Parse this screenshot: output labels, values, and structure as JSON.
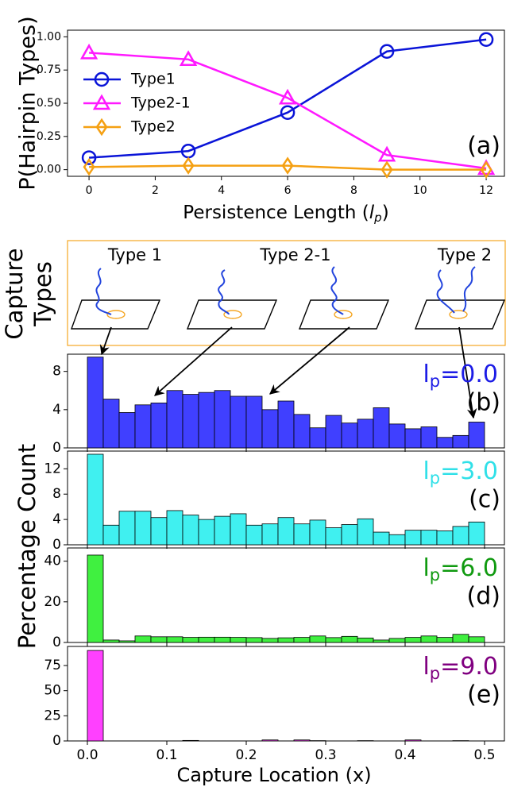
{
  "chart_data": [
    {
      "type": "line",
      "y_label": "P(Hairpin Types)",
      "x_label": {
        "text": "Persistence Length (",
        "var": "l",
        "sub": "p",
        "end": ")"
      },
      "annotation": "(a)",
      "x": [
        0,
        3,
        6,
        9,
        12
      ],
      "xlim": [
        -0.65,
        12.55
      ],
      "xticks": [
        0,
        2,
        4,
        6,
        8,
        10,
        12
      ],
      "ylim": [
        -0.05,
        1.05
      ],
      "yticks": [
        {
          "value": 0,
          "label": "0.00"
        },
        0.25,
        {
          "value": 0.5,
          "label": "0.50"
        },
        0.75,
        {
          "value": 1,
          "label": "1.00"
        }
      ],
      "legend": "upper left",
      "series": [
        {
          "name": "Type1",
          "color": "#0a14d8",
          "marker": "circle",
          "values": [
            0.09,
            0.14,
            0.43,
            0.89,
            0.98
          ]
        },
        {
          "name": "Type2-1",
          "color": "#ff19ff",
          "marker": "triangle",
          "values": [
            0.88,
            0.83,
            0.54,
            0.11,
            0.01
          ]
        },
        {
          "name": "Type2",
          "color": "#f5a012",
          "marker": "diamond",
          "values": [
            0.02,
            0.03,
            0.03,
            0.0,
            0.0
          ]
        }
      ]
    },
    {
      "type": "histogram",
      "color": "#4040ff",
      "annotation": {
        "var": "l",
        "sub": "p",
        "text": "=0.0",
        "color": "#1c1ce6",
        "panel": "(b)"
      },
      "bins": [
        0,
        0.02,
        0.04,
        0.06,
        0.08,
        0.1,
        0.12,
        0.14,
        0.16,
        0.18,
        0.2,
        0.22,
        0.24,
        0.26,
        0.28,
        0.3,
        0.32,
        0.34,
        0.36,
        0.38,
        0.4,
        0.42,
        0.44,
        0.46,
        0.48,
        0.5
      ],
      "values": [
        9.5,
        5.1,
        3.7,
        4.5,
        4.7,
        6.0,
        5.6,
        5.8,
        6.0,
        5.4,
        5.4,
        4.0,
        4.9,
        3.5,
        2.1,
        3.4,
        2.6,
        3.0,
        4.2,
        2.5,
        2.0,
        2.2,
        1.1,
        1.3,
        2.7
      ],
      "xlim": [
        -0.025,
        0.525
      ],
      "xticks": [
        {
          "value": 0,
          "label": "0.0"
        },
        0.1,
        0.2,
        0.3,
        0.4,
        0.5
      ],
      "ylim": [
        0,
        9.8
      ],
      "yticks": [
        0,
        4,
        8
      ]
    },
    {
      "type": "histogram",
      "color": "#40f0f0",
      "annotation": {
        "var": "l",
        "sub": "p",
        "text": "=3.0",
        "color": "#30e0e8",
        "panel": "(c)"
      },
      "bins": [
        0,
        0.02,
        0.04,
        0.06,
        0.08,
        0.1,
        0.12,
        0.14,
        0.16,
        0.18,
        0.2,
        0.22,
        0.24,
        0.26,
        0.28,
        0.3,
        0.32,
        0.34,
        0.36,
        0.38,
        0.4,
        0.42,
        0.44,
        0.46,
        0.48,
        0.5
      ],
      "values": [
        14.3,
        3.1,
        5.3,
        5.3,
        4.3,
        5.4,
        4.7,
        4.0,
        4.5,
        4.9,
        3.1,
        3.3,
        4.3,
        3.3,
        3.9,
        2.7,
        3.2,
        4.1,
        2.0,
        1.6,
        2.3,
        2.3,
        2.2,
        2.9,
        3.6
      ],
      "xlim": [
        -0.025,
        0.525
      ],
      "xticks": [
        {
          "value": 0,
          "label": "0.0"
        },
        0.1,
        0.2,
        0.3,
        0.4,
        0.5
      ],
      "ylim": [
        0,
        14.8
      ],
      "yticks": [
        0,
        4,
        8,
        12
      ]
    },
    {
      "type": "histogram",
      "color": "#40f040",
      "annotation": {
        "var": "l",
        "sub": "p",
        "text": "=6.0",
        "color": "#109a10",
        "panel": "(d)"
      },
      "bins": [
        0,
        0.02,
        0.04,
        0.06,
        0.08,
        0.1,
        0.12,
        0.14,
        0.16,
        0.18,
        0.2,
        0.22,
        0.24,
        0.26,
        0.28,
        0.3,
        0.32,
        0.34,
        0.36,
        0.38,
        0.4,
        0.42,
        0.44,
        0.46,
        0.48,
        0.5
      ],
      "values": [
        43,
        1.2,
        0.8,
        3.2,
        2.8,
        2.8,
        2.5,
        2.6,
        2.6,
        2.5,
        2.4,
        2.0,
        2.3,
        2.5,
        3.2,
        2.4,
        3.0,
        2.2,
        1.2,
        2.0,
        2.5,
        3.2,
        2.5,
        4.0,
        2.8
      ],
      "xlim": [
        -0.025,
        0.525
      ],
      "xticks": [
        {
          "value": 0,
          "label": "0.0"
        },
        0.1,
        0.2,
        0.3,
        0.4,
        0.5
      ],
      "ylim": [
        0,
        46.5
      ],
      "yticks": [
        0,
        20,
        40
      ]
    },
    {
      "type": "histogram",
      "color": "#ff40ff",
      "x_label": "Capture Location (x)",
      "annotation": {
        "var": "l",
        "sub": "p",
        "text": "=9.0",
        "color": "#800080",
        "panel": "(e)"
      },
      "bins": [
        0,
        0.02,
        0.04,
        0.06,
        0.08,
        0.1,
        0.12,
        0.14,
        0.16,
        0.18,
        0.2,
        0.22,
        0.24,
        0.26,
        0.28,
        0.3,
        0.32,
        0.34,
        0.36,
        0.38,
        0.4,
        0.42,
        0.44,
        0.46,
        0.48,
        0.5
      ],
      "values": [
        90,
        0,
        0,
        0,
        0,
        0,
        0.5,
        0,
        0,
        0,
        0,
        1.0,
        0,
        1.0,
        0.3,
        0,
        0,
        0.3,
        0,
        0,
        1.0,
        0,
        0,
        0.3,
        0
      ],
      "xlim": [
        -0.025,
        0.525
      ],
      "xticks": [
        {
          "value": 0,
          "label": "0.0"
        },
        0.1,
        0.2,
        0.3,
        0.4,
        0.5
      ],
      "ylim": [
        0,
        94
      ],
      "yticks": [
        0,
        25,
        50,
        75
      ]
    }
  ],
  "figure": {
    "y_label": "Percentage Count"
  },
  "diagram": {
    "title": [
      "Capture",
      "Types"
    ],
    "labels": [
      {
        "text": "Type 1",
        "color": "#2020e0"
      },
      {
        "text": "Type 2-1",
        "color": "#f020f0"
      },
      {
        "text": "Type 2",
        "color": "#f07020"
      }
    ]
  }
}
